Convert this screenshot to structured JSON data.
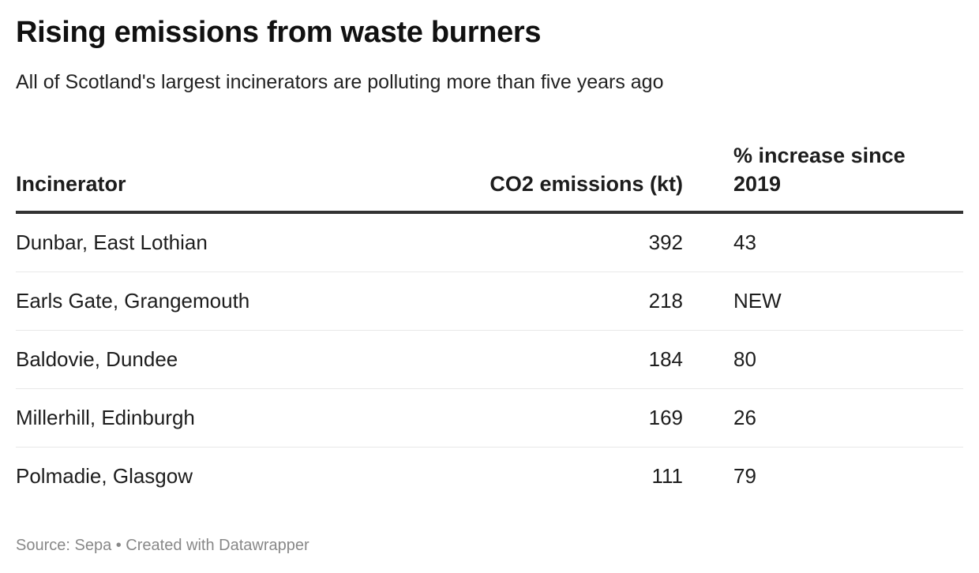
{
  "header": {
    "title": "Rising emissions from waste burners",
    "subtitle": "All of Scotland's largest incinerators are polluting more than five years ago"
  },
  "table": {
    "columns": [
      "Incinerator",
      "CO2 emissions (kt)",
      "% increase since 2019"
    ],
    "rows": [
      {
        "incinerator": "Dunbar, East Lothian",
        "co2_kt": "392",
        "pct_increase": "43"
      },
      {
        "incinerator": "Earls Gate, Grangemouth",
        "co2_kt": "218",
        "pct_increase": "NEW"
      },
      {
        "incinerator": "Baldovie, Dundee",
        "co2_kt": "184",
        "pct_increase": "80"
      },
      {
        "incinerator": "Millerhill, Edinburgh",
        "co2_kt": "169",
        "pct_increase": "26"
      },
      {
        "incinerator": "Polmadie, Glasgow",
        "co2_kt": "111",
        "pct_increase": "79"
      }
    ]
  },
  "footer": {
    "text": "Source: Sepa • Created with Datawrapper"
  },
  "colors": {
    "header_rule": "#333333",
    "row_divider": "#e8e8e8",
    "footer_text": "#888888"
  },
  "chart_data": {
    "type": "table",
    "title": "Rising emissions from waste burners",
    "subtitle": "All of Scotland's largest incinerators are polluting more than five years ago",
    "columns": [
      "Incinerator",
      "CO2 emissions (kt)",
      "% increase since 2019"
    ],
    "rows": [
      [
        "Dunbar, East Lothian",
        392,
        43
      ],
      [
        "Earls Gate, Grangemouth",
        218,
        "NEW"
      ],
      [
        "Baldovie, Dundee",
        184,
        80
      ],
      [
        "Millerhill, Edinburgh",
        169,
        26
      ],
      [
        "Polmadie, Glasgow",
        111,
        79
      ]
    ],
    "source": "Sepa"
  }
}
